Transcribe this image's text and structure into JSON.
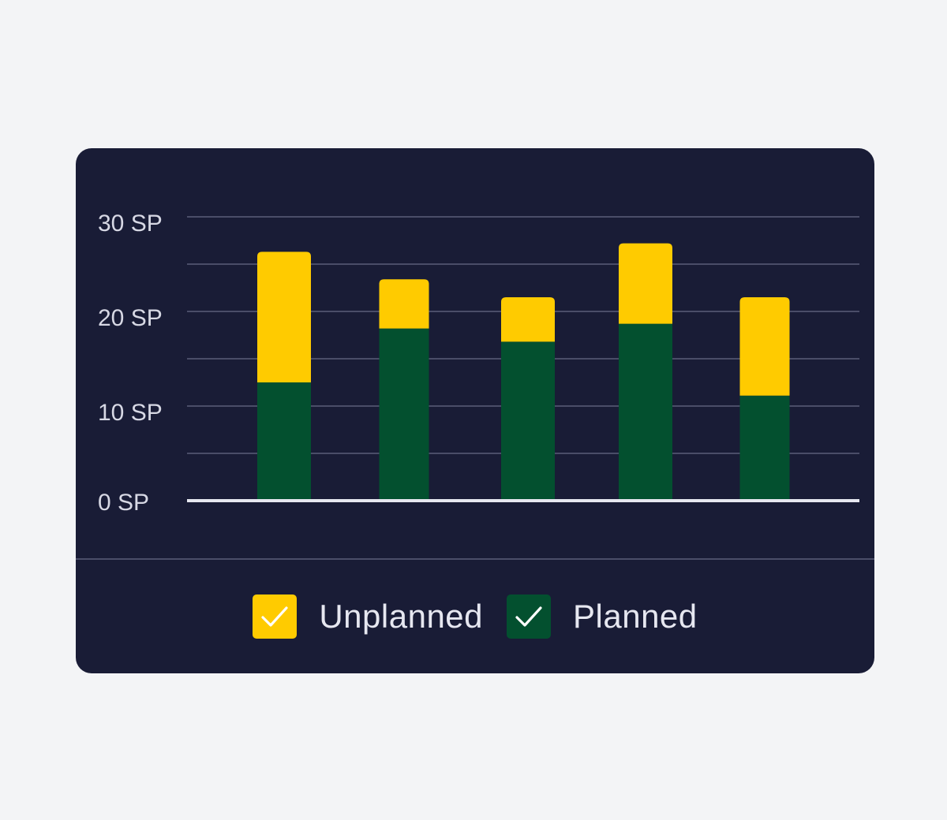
{
  "chart_data": {
    "type": "bar",
    "stacked": true,
    "categories": [
      "",
      "",
      "",
      "",
      ""
    ],
    "series": [
      {
        "name": "Planned",
        "values": [
          12.5,
          18.2,
          16.8,
          18.7,
          11.1
        ],
        "color": "#03502f"
      },
      {
        "name": "Unplanned",
        "values": [
          13.8,
          5.2,
          4.7,
          8.5,
          10.4
        ],
        "color": "#ffcb00"
      }
    ],
    "yticks": [
      "0 SP",
      "10 SP",
      "20 SP",
      "30 SP"
    ],
    "ylim": [
      0,
      30
    ],
    "grid": true,
    "legend_position": "bottom"
  },
  "legend": {
    "unplanned_label": "Unplanned",
    "planned_label": "Planned"
  },
  "icons": {
    "legend_check": "check-icon"
  },
  "colors": {
    "card_background": "#191c36",
    "page_background": "#f3f4f6",
    "unplanned": "#ffcb00",
    "planned": "#03502f",
    "gridline": "#4a4d68",
    "baseline": "#e6e7f0"
  }
}
